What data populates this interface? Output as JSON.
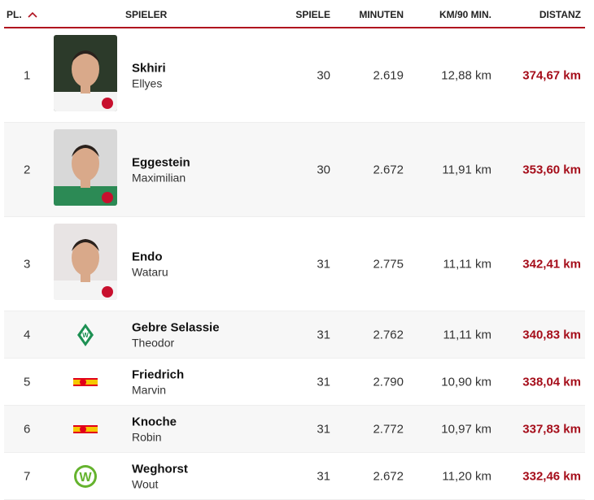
{
  "header": {
    "rank": "PL.",
    "sort_icon": "chevron-up-icon",
    "player": "SPIELER",
    "games": "SPIELE",
    "minutes": "MINUTEN",
    "km90": "KM/90 MIN.",
    "distance": "DISTANZ"
  },
  "accent": "#a50d1a",
  "rows": [
    {
      "rank": "1",
      "last": "Skhiri",
      "first": "Ellyes",
      "games": "30",
      "minutes": "2.619",
      "km90": "12,88 km",
      "distance": "374,67 km",
      "visual": "photo",
      "club": "koeln"
    },
    {
      "rank": "2",
      "last": "Eggestein",
      "first": "Maximilian",
      "games": "30",
      "minutes": "2.672",
      "km90": "11,91 km",
      "distance": "353,60 km",
      "visual": "photo",
      "club": "werder"
    },
    {
      "rank": "3",
      "last": "Endo",
      "first": "Wataru",
      "games": "31",
      "minutes": "2.775",
      "km90": "11,11 km",
      "distance": "342,41 km",
      "visual": "photo",
      "club": "stuttgart"
    },
    {
      "rank": "4",
      "last": "Gebre Selassie",
      "first": "Theodor",
      "games": "31",
      "minutes": "2.762",
      "km90": "11,11 km",
      "distance": "340,83 km",
      "visual": "logo",
      "club": "werder"
    },
    {
      "rank": "5",
      "last": "Friedrich",
      "first": "Marvin",
      "games": "31",
      "minutes": "2.790",
      "km90": "10,90 km",
      "distance": "338,04 km",
      "visual": "logo",
      "club": "union"
    },
    {
      "rank": "6",
      "last": "Knoche",
      "first": "Robin",
      "games": "31",
      "minutes": "2.772",
      "km90": "10,97 km",
      "distance": "337,83 km",
      "visual": "logo",
      "club": "union"
    },
    {
      "rank": "7",
      "last": "Weghorst",
      "first": "Wout",
      "games": "31",
      "minutes": "2.672",
      "km90": "11,20 km",
      "distance": "332,46 km",
      "visual": "logo",
      "club": "wolfsburg"
    }
  ]
}
